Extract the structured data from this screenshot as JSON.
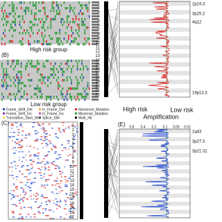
{
  "panels": {
    "a": {
      "group_label": "High risk group"
    },
    "b": {
      "label": "(B)",
      "group_label": "Low risk group"
    },
    "legend": [
      "Frame_Shift_Del",
      "In_Frame_Del",
      "Nonsense_Mutation",
      "Frame_Shift_Ins",
      "In_Frame_Ins",
      "Missense_Mutation",
      "Translation_Start_Site",
      "Splice_Site",
      "Multi_Hit"
    ],
    "c": {
      "label": "(C)",
      "chromosomes": [
        "1",
        "2",
        "3",
        "4",
        "5",
        "6",
        "7",
        "8",
        "9",
        "10",
        "11",
        "12",
        "13",
        "14",
        "15",
        "16",
        "17",
        "18",
        "19",
        "20",
        "22"
      ]
    },
    "d": {
      "left_label": "High risk",
      "right_label": "Low risk",
      "title": "Amplification",
      "chromosomes": [
        "1",
        "2",
        "3",
        "4",
        "5",
        "6",
        "7",
        "8",
        "9",
        "10",
        "11",
        "12",
        "13",
        "14",
        "15",
        "16",
        "17",
        "18",
        "19",
        "20",
        "21",
        "22"
      ],
      "cytobands": [
        "2p24.3",
        "3p25.2",
        "4q12",
        "19p13.3"
      ]
    },
    "e": {
      "label": "(E)",
      "top_ticks": [
        "0.8",
        "0.4",
        "0.2",
        "0.1",
        "0.05",
        "0.01"
      ],
      "cytobands": [
        "1q43",
        "3p27.3",
        "3p21.31"
      ]
    }
  }
}
